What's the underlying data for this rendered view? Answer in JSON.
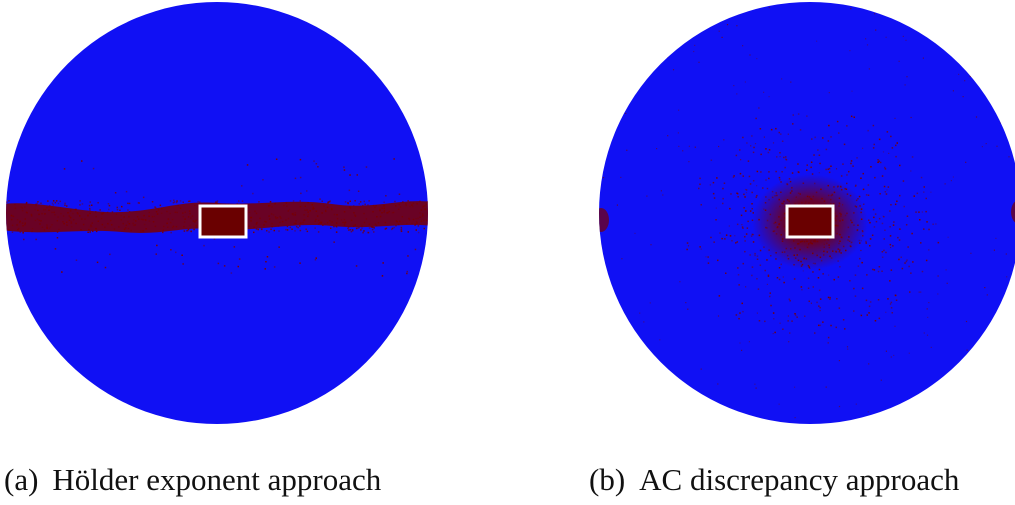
{
  "colors": {
    "disk": "#1010f4",
    "feature": "#7a0000",
    "box_stroke": "#ffffff",
    "caption_text": "#111111"
  },
  "panels": [
    {
      "label": "(a)",
      "caption": "Hölder exponent approach",
      "pattern": "horizontal-band"
    },
    {
      "label": "(b)",
      "caption": "AC discrepancy approach",
      "pattern": "central-starburst"
    }
  ]
}
